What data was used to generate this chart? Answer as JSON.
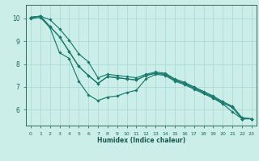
{
  "xlabel": "Humidex (Indice chaleur)",
  "bg_color": "#cceee8",
  "grid_color": "#aaddd5",
  "line_color": "#1a7a6e",
  "xlim": [
    -0.5,
    23.5
  ],
  "ylim": [
    5.3,
    10.6
  ],
  "yticks": [
    6,
    7,
    8,
    9,
    10
  ],
  "xticks": [
    0,
    1,
    2,
    3,
    4,
    5,
    6,
    7,
    8,
    9,
    10,
    11,
    12,
    13,
    14,
    15,
    16,
    17,
    18,
    19,
    20,
    21,
    22,
    23
  ],
  "series": [
    [
      10.05,
      10.1,
      9.95,
      9.55,
      9.05,
      8.45,
      8.1,
      7.4,
      7.55,
      7.5,
      7.45,
      7.4,
      7.55,
      7.65,
      7.6,
      7.35,
      7.2,
      7.0,
      6.8,
      6.6,
      6.35,
      6.15,
      5.65,
      5.6
    ],
    [
      10.05,
      10.1,
      9.65,
      9.2,
      8.55,
      7.9,
      7.5,
      7.15,
      7.45,
      7.4,
      7.35,
      7.3,
      7.5,
      7.6,
      7.55,
      7.3,
      7.15,
      6.95,
      6.75,
      6.55,
      6.3,
      6.1,
      5.6,
      5.6
    ],
    [
      10.05,
      10.1,
      9.65,
      9.2,
      8.55,
      7.9,
      7.5,
      7.15,
      7.45,
      7.4,
      7.35,
      7.3,
      7.5,
      7.6,
      7.55,
      7.3,
      7.15,
      6.95,
      6.75,
      6.55,
      6.3,
      6.1,
      5.6,
      5.6
    ],
    [
      10.0,
      10.05,
      9.6,
      8.5,
      8.25,
      7.25,
      6.65,
      6.4,
      6.55,
      6.6,
      6.75,
      6.85,
      7.35,
      7.55,
      7.5,
      7.25,
      7.1,
      6.9,
      6.7,
      6.5,
      6.25,
      5.9,
      5.6,
      5.6
    ]
  ]
}
